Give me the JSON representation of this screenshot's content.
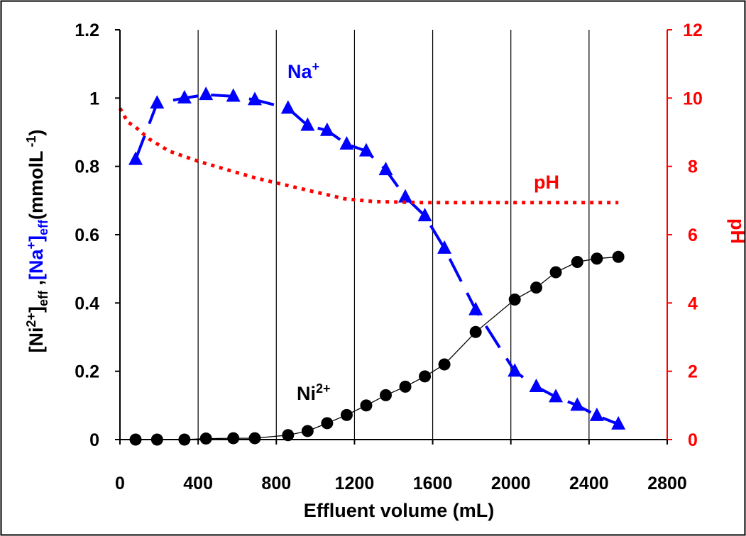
{
  "chart_data": {
    "type": "scatter",
    "xlabel": "Effluent volume (mL)",
    "ylabel": "[Ni2+]eff ,[Na+]eff(mmolL-1)",
    "ylabel_parts": {
      "p1": "[Ni",
      "p1_sup": "2+",
      "p1_after": "]",
      "p1_sub": "eff",
      "sep": " ,",
      "p2": "[Na",
      "p2_sup": "+",
      "p2_after": "]",
      "p2_sub": "eff",
      "p3": "(mmolL",
      "p3_sup": " -1",
      "p3_after": ")"
    },
    "y2label": "pH",
    "xlim": [
      0,
      2800
    ],
    "ylim": [
      0,
      1.2
    ],
    "y2lim": [
      0,
      12
    ],
    "x_ticks": [
      "0",
      "400",
      "800",
      "1200",
      "1600",
      "2000",
      "2400",
      "2800"
    ],
    "x_tick_values": [
      0,
      400,
      800,
      1200,
      1600,
      2000,
      2400,
      2800
    ],
    "y_ticks": [
      "0",
      "0.2",
      "0.4",
      "0.6",
      "0.8",
      "1",
      "1.2"
    ],
    "y_tick_values": [
      0,
      0.2,
      0.4,
      0.6,
      0.8,
      1.0,
      1.2
    ],
    "y2_ticks": [
      "0",
      "2",
      "4",
      "6",
      "8",
      "10",
      "12"
    ],
    "y2_tick_values": [
      0,
      2,
      4,
      6,
      8,
      10,
      12
    ],
    "grid": "vertical",
    "annotations": {
      "na": {
        "text": "Na",
        "sup": "+"
      },
      "ni": {
        "text": "Ni",
        "sup": "2+"
      },
      "ph": {
        "text": "pH"
      }
    },
    "series": [
      {
        "key": "na",
        "color": "#0000ff",
        "marker": "triangle",
        "line": "long-dash",
        "x": [
          80,
          190,
          330,
          440,
          580,
          690,
          860,
          960,
          1060,
          1160,
          1260,
          1360,
          1460,
          1560,
          1660,
          1820,
          2020,
          2130,
          2230,
          2340,
          2440,
          2550
        ],
        "y": [
          0.82,
          0.985,
          1.0,
          1.01,
          1.005,
          0.995,
          0.97,
          0.92,
          0.905,
          0.865,
          0.845,
          0.79,
          0.71,
          0.655,
          0.56,
          0.38,
          0.2,
          0.155,
          0.125,
          0.1,
          0.07,
          0.045
        ]
      },
      {
        "key": "ni",
        "color": "#000000",
        "marker": "circle",
        "line": "thin",
        "x": [
          80,
          190,
          330,
          440,
          580,
          690,
          860,
          960,
          1060,
          1160,
          1260,
          1360,
          1460,
          1560,
          1660,
          1820,
          2020,
          2130,
          2230,
          2340,
          2440,
          2550
        ],
        "y": [
          0.0,
          0.0,
          0.0,
          0.003,
          0.004,
          0.004,
          0.013,
          0.025,
          0.048,
          0.072,
          0.1,
          0.13,
          0.155,
          0.185,
          0.22,
          0.315,
          0.41,
          0.445,
          0.49,
          0.52,
          0.53,
          0.535
        ]
      },
      {
        "key": "ph",
        "color": "#ff0000",
        "axis": "right",
        "line": "dotted",
        "x": [
          0,
          40,
          80,
          150,
          250,
          400,
          550,
          700,
          850,
          1000,
          1150,
          1300,
          1450,
          1550,
          1700,
          1900,
          2100,
          2300,
          2550
        ],
        "y": [
          9.7,
          9.3,
          9.15,
          8.8,
          8.45,
          8.15,
          7.9,
          7.65,
          7.45,
          7.25,
          7.05,
          6.97,
          6.95,
          6.94,
          6.94,
          6.94,
          6.94,
          6.94,
          6.94
        ]
      }
    ]
  }
}
